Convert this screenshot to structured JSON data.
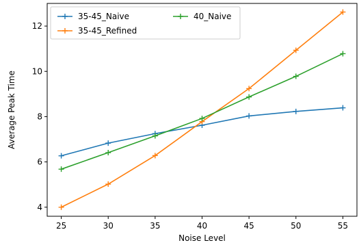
{
  "chart_data": {
    "type": "line",
    "title": "",
    "xlabel": "Noise Level",
    "ylabel": "Average Peak Time",
    "x": [
      25,
      30,
      35,
      40,
      45,
      50,
      55
    ],
    "xticks": [
      "25",
      "30",
      "35",
      "40",
      "45",
      "50",
      "55"
    ],
    "yticks": [
      "4",
      "6",
      "8",
      "10",
      "12"
    ],
    "xlim": [
      23.5,
      56.5
    ],
    "ylim": [
      3.6,
      13.0
    ],
    "grid": false,
    "legend_position": "top-left",
    "marker": "+",
    "series": [
      {
        "name": "35-45_Naive",
        "color": "#1f77b4",
        "values": [
          6.27,
          6.83,
          7.25,
          7.62,
          8.03,
          8.23,
          8.39
        ]
      },
      {
        "name": "35-45_Refined",
        "color": "#ff7f0e",
        "values": [
          4.0,
          5.02,
          6.28,
          7.78,
          9.24,
          10.93,
          12.62
        ]
      },
      {
        "name": "40_Naive",
        "color": "#2ca02c",
        "values": [
          5.68,
          6.41,
          7.15,
          7.92,
          8.87,
          9.78,
          10.78
        ]
      }
    ]
  }
}
